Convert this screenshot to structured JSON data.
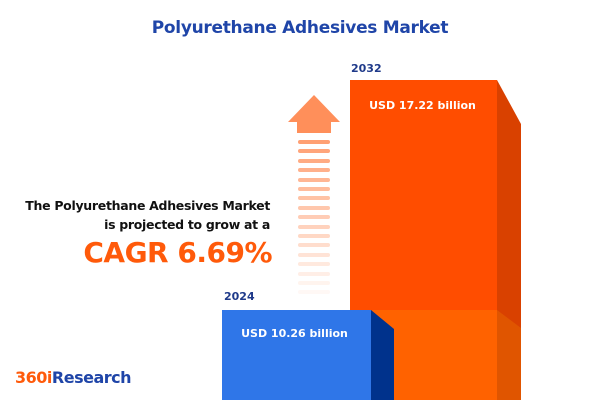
{
  "title": "Polyurethane Adhesives Market",
  "description": {
    "line1": "The Polyurethane Adhesives Market",
    "line2": "is projected to grow at a",
    "cagr": "CAGR 6.69%"
  },
  "logo": {
    "part1": "360i",
    "part2": "Research",
    "color1": "#ff5a0a",
    "color2": "#1f45a8"
  },
  "chart_data": {
    "type": "bar",
    "categories": [
      "2024",
      "2032"
    ],
    "values": [
      10.26,
      17.22
    ],
    "unit": "USD billion",
    "data_labels": [
      "USD 10.26 billion",
      "USD 17.22 billion"
    ],
    "cagr": "6.69%",
    "colors": {
      "2024": "#2f76e8",
      "2032": "#ff4d00"
    },
    "growth_arrow": "up-arrow"
  }
}
